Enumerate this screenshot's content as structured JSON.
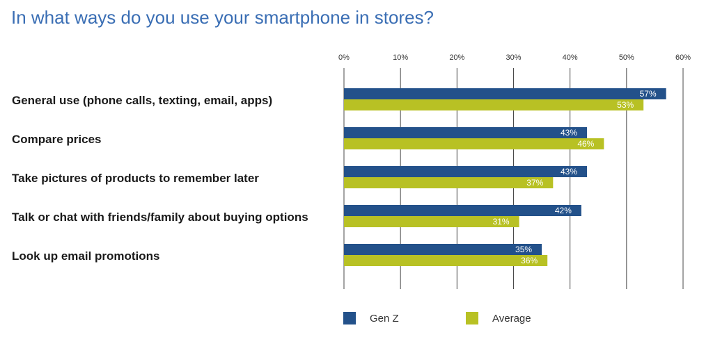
{
  "title": "In what ways do you use your smartphone in stores?",
  "chart_data": {
    "type": "bar",
    "orientation": "horizontal",
    "title": "In what ways do you use your smartphone in stores?",
    "categories": [
      "General use (phone calls, texting, email, apps)",
      "Compare prices",
      "Take pictures of products to remember later",
      "Talk or chat with friends/family about buying options",
      "Look up email promotions"
    ],
    "series": [
      {
        "name": "Gen Z",
        "color": "#23518a",
        "values": [
          57,
          43,
          43,
          42,
          35
        ]
      },
      {
        "name": "Average",
        "color": "#b8c124",
        "values": [
          53,
          46,
          37,
          31,
          36
        ]
      }
    ],
    "xlim": [
      0,
      60
    ],
    "ticks": [
      "0%",
      "10%",
      "20%",
      "30%",
      "40%",
      "50%",
      "60%"
    ],
    "tick_values": [
      0,
      10,
      20,
      30,
      40,
      50,
      60
    ],
    "value_suffix": "%",
    "grid": true,
    "legend_position": "bottom"
  }
}
